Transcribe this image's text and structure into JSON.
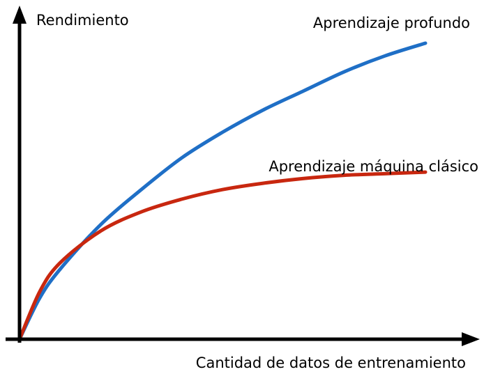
{
  "chart_data": {
    "type": "line",
    "title": "",
    "ylabel": "Rendimiento",
    "xlabel": "Cantidad de datos de entrenamiento",
    "x_ticks": "none",
    "y_ticks": "none",
    "xlim": [
      0,
      1
    ],
    "ylim": [
      0,
      1
    ],
    "grid": false,
    "legend": "labels next to curves",
    "series": [
      {
        "name": "Aprendizaje profundo",
        "color": "#1f6fc6",
        "x": [
          0,
          0.05,
          0.1,
          0.2,
          0.3,
          0.4,
          0.5,
          0.6,
          0.7,
          0.8,
          0.9,
          1.0
        ],
        "y": [
          0,
          0.13,
          0.22,
          0.36,
          0.47,
          0.57,
          0.65,
          0.72,
          0.78,
          0.84,
          0.89,
          0.93
        ]
      },
      {
        "name": "Aprendizaje máquina clásico",
        "color": "#c8270f",
        "x": [
          0,
          0.05,
          0.1,
          0.2,
          0.3,
          0.4,
          0.5,
          0.6,
          0.7,
          0.8,
          0.9,
          1.0
        ],
        "y": [
          0,
          0.15,
          0.24,
          0.34,
          0.4,
          0.44,
          0.47,
          0.49,
          0.505,
          0.515,
          0.52,
          0.525
        ]
      }
    ]
  }
}
